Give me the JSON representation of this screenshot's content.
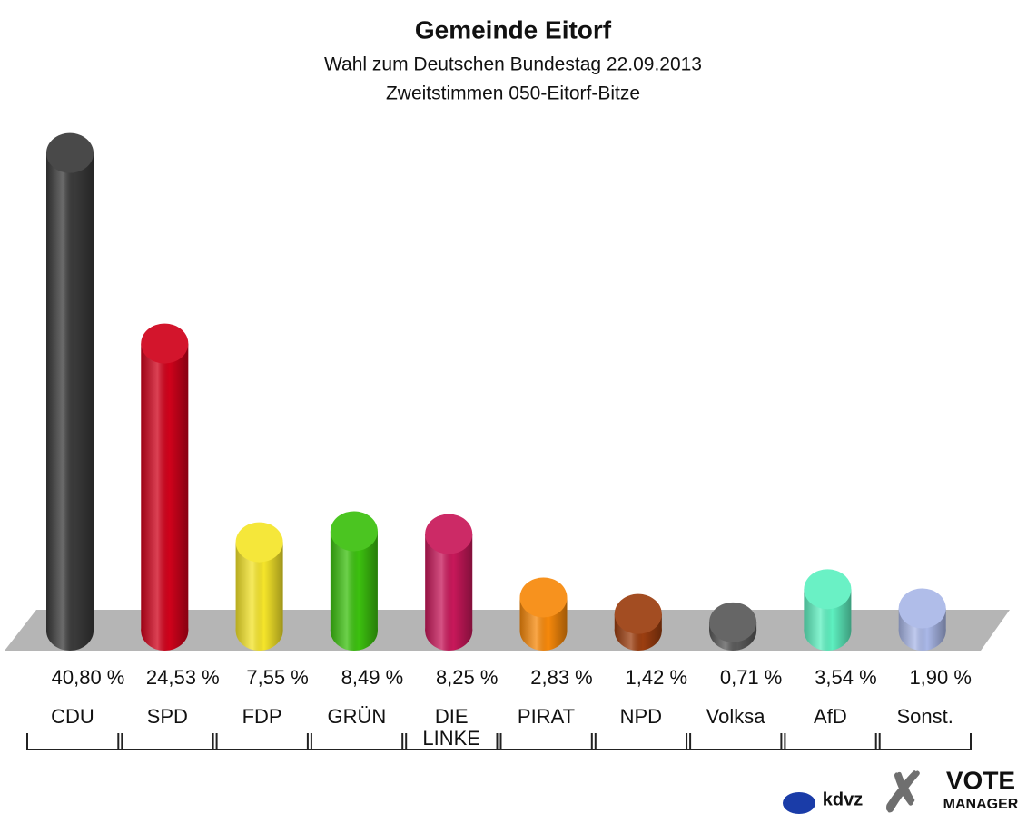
{
  "chart_data": {
    "type": "bar",
    "title": "Gemeinde Eitorf",
    "subtitle": "Wahl zum Deutschen Bundestag 22.09.2013",
    "subtitle2": "Zweitstimmen 050-Eitorf-Bitze",
    "categories": [
      "CDU",
      "SPD",
      "FDP",
      "GRÜN",
      "DIE LINKE",
      "PIRAT",
      "NPD",
      "Volksa",
      "AfD",
      "Sonst."
    ],
    "values": [
      40.8,
      24.53,
      7.55,
      8.49,
      8.25,
      2.83,
      1.42,
      0.71,
      3.54,
      1.9
    ],
    "value_labels": [
      "40,80 %",
      "24,53 %",
      "7,55 %",
      "8,49 %",
      "8,25 %",
      "2,83 %",
      "1,42 %",
      "0,71 %",
      "3,54 %",
      "1,90 %"
    ],
    "colors": [
      "#3a3a3a",
      "#d0021b",
      "#f5e52a",
      "#3cc10f",
      "#c8185a",
      "#f7890b",
      "#9c3e10",
      "#5a5a5a",
      "#5ef0c0",
      "#aab8e8"
    ],
    "logos": [
      "kdvz",
      "VOTE",
      "MANAGER"
    ]
  }
}
